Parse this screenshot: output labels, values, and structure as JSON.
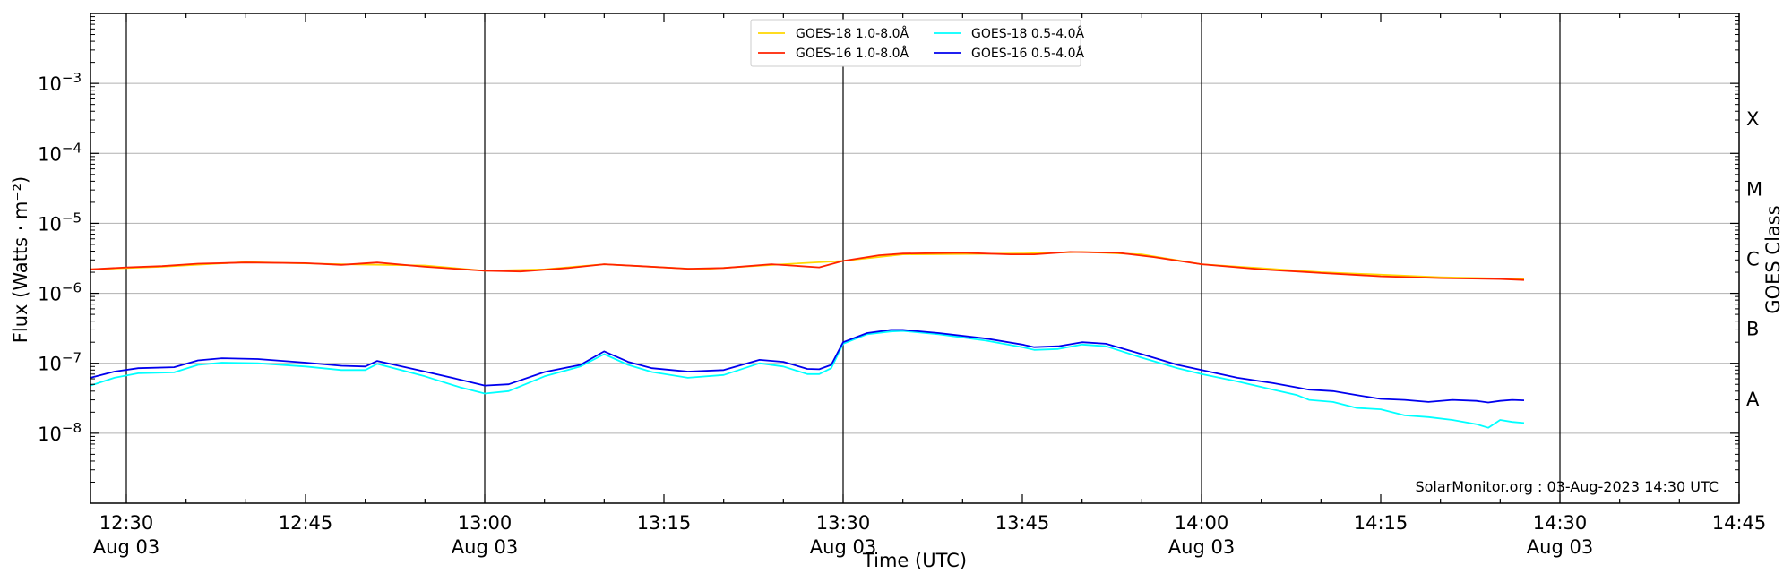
{
  "chart_data": {
    "type": "line",
    "xlabel": "Time (UTC)",
    "ylabel": "Flux (Watts · m⁻²)",
    "y2label": "GOES Class",
    "y_scale": "log",
    "ylim": [
      1e-09,
      0.01
    ],
    "xlim": [
      "12:27",
      "14:45"
    ],
    "grid": "horizontal at decades",
    "x_ticks": [
      {
        "time": "12:30",
        "label": "12:30",
        "sublabel": "Aug 03"
      },
      {
        "time": "12:45",
        "label": "12:45",
        "sublabel": ""
      },
      {
        "time": "13:00",
        "label": "13:00",
        "sublabel": "Aug 03"
      },
      {
        "time": "13:15",
        "label": "13:15",
        "sublabel": ""
      },
      {
        "time": "13:30",
        "label": "13:30",
        "sublabel": "Aug 03"
      },
      {
        "time": "13:45",
        "label": "13:45",
        "sublabel": ""
      },
      {
        "time": "14:00",
        "label": "14:00",
        "sublabel": "Aug 03"
      },
      {
        "time": "14:15",
        "label": "14:15",
        "sublabel": ""
      },
      {
        "time": "14:30",
        "label": "14:30",
        "sublabel": "Aug 03"
      },
      {
        "time": "14:45",
        "label": "14:45",
        "sublabel": ""
      }
    ],
    "vertical_lines": [
      "12:30",
      "13:00",
      "13:30",
      "14:00",
      "14:30"
    ],
    "y_ticks": [
      {
        "value": 1e-08,
        "base": "10",
        "exp": "−8"
      },
      {
        "value": 1e-07,
        "base": "10",
        "exp": "−7"
      },
      {
        "value": 1e-06,
        "base": "10",
        "exp": "−6"
      },
      {
        "value": 1e-05,
        "base": "10",
        "exp": "−5"
      },
      {
        "value": 0.0001,
        "base": "10",
        "exp": "−4"
      },
      {
        "value": 0.001,
        "base": "10",
        "exp": "−3"
      }
    ],
    "goes_classes": [
      {
        "label": "A",
        "value": 3.16e-08
      },
      {
        "label": "B",
        "value": 3.16e-07
      },
      {
        "label": "C",
        "value": 3.16e-06
      },
      {
        "label": "M",
        "value": 3.16e-05
      },
      {
        "label": "X",
        "value": 0.000316
      }
    ],
    "legend": {
      "placement": "top-center",
      "entries": [
        {
          "name": "GOES-18 1.0-8.0Å",
          "color": "#ffd700"
        },
        {
          "name": "GOES-16 1.0-8.0Å",
          "color": "#ff2200"
        },
        {
          "name": "GOES-18 0.5-4.0Å",
          "color": "#00ffff"
        },
        {
          "name": "GOES-16 0.5-4.0Å",
          "color": "#0000ee"
        }
      ]
    },
    "series": [
      {
        "name": "GOES-18 1.0-8.0Å",
        "color": "#ffd700",
        "x": [
          "12:27",
          "12:33",
          "12:40",
          "12:48",
          "12:55",
          "13:00",
          "13:05",
          "13:10",
          "13:18",
          "13:25",
          "13:30",
          "13:35",
          "13:45",
          "13:50",
          "13:55",
          "14:00",
          "14:10",
          "14:20",
          "14:27"
        ],
        "y": [
          2.2e-06,
          2.4e-06,
          2.8e-06,
          2.6e-06,
          2.5e-06,
          2.1e-06,
          2.2e-06,
          2.6e-06,
          2.2e-06,
          2.6e-06,
          2.9e-06,
          3.6e-06,
          3.7e-06,
          3.9e-06,
          3.6e-06,
          2.6e-06,
          2e-06,
          1.7e-06,
          1.6e-06
        ]
      },
      {
        "name": "GOES-16 1.0-8.0Å",
        "color": "#ff2200",
        "x": [
          "12:27",
          "12:30",
          "12:33",
          "12:36",
          "12:40",
          "12:45",
          "12:48",
          "12:51",
          "12:55",
          "13:00",
          "13:03",
          "13:07",
          "13:10",
          "13:13",
          "13:17",
          "13:20",
          "13:24",
          "13:28",
          "13:30",
          "13:33",
          "13:35",
          "13:40",
          "13:44",
          "13:46",
          "13:49",
          "13:53",
          "13:56",
          "14:00",
          "14:05",
          "14:10",
          "14:15",
          "14:20",
          "14:25",
          "14:27"
        ],
        "y": [
          2.2e-06,
          2.35e-06,
          2.45e-06,
          2.65e-06,
          2.75e-06,
          2.7e-06,
          2.55e-06,
          2.75e-06,
          2.4e-06,
          2.1e-06,
          2.05e-06,
          2.3e-06,
          2.6e-06,
          2.45e-06,
          2.25e-06,
          2.3e-06,
          2.6e-06,
          2.35e-06,
          2.9e-06,
          3.5e-06,
          3.7e-06,
          3.8e-06,
          3.6e-06,
          3.6e-06,
          3.9e-06,
          3.8e-06,
          3.3e-06,
          2.6e-06,
          2.2e-06,
          1.95e-06,
          1.75e-06,
          1.65e-06,
          1.6e-06,
          1.55e-06
        ]
      },
      {
        "name": "GOES-18 0.5-4.0Å",
        "color": "#00ffff",
        "x": [
          "12:27",
          "12:29",
          "12:31",
          "12:34",
          "12:36",
          "12:38",
          "12:41",
          "12:45",
          "12:48",
          "12:50",
          "12:51",
          "12:55",
          "12:58",
          "13:00",
          "13:02",
          "13:05",
          "13:08",
          "13:10",
          "13:12",
          "13:14",
          "13:17",
          "13:20",
          "13:23",
          "13:25",
          "13:27",
          "13:28",
          "13:29",
          "13:30",
          "13:32",
          "13:34",
          "13:35",
          "13:38",
          "13:42",
          "13:45",
          "13:46",
          "13:48",
          "13:50",
          "13:52",
          "13:55",
          "13:58",
          "14:00",
          "14:03",
          "14:06",
          "14:08",
          "14:09",
          "14:11",
          "14:13",
          "14:15",
          "14:17",
          "14:19",
          "14:21",
          "14:23",
          "14:24",
          "14:25",
          "14:26",
          "14:27"
        ],
        "y": [
          4.8e-08,
          6.2e-08,
          7.2e-08,
          7.4e-08,
          9.5e-08,
          1.02e-07,
          1e-07,
          9e-08,
          8e-08,
          8e-08,
          9.8e-08,
          6.5e-08,
          4.5e-08,
          3.7e-08,
          4e-08,
          6.5e-08,
          9e-08,
          1.35e-07,
          9.5e-08,
          7.5e-08,
          6.2e-08,
          6.8e-08,
          1e-07,
          9e-08,
          7e-08,
          7e-08,
          8.5e-08,
          1.9e-07,
          2.6e-07,
          2.85e-07,
          2.9e-07,
          2.6e-07,
          2.1e-07,
          1.7e-07,
          1.55e-07,
          1.6e-07,
          1.85e-07,
          1.75e-07,
          1.2e-07,
          8.5e-08,
          7e-08,
          5.5e-08,
          4.2e-08,
          3.5e-08,
          3e-08,
          2.8e-08,
          2.3e-08,
          2.2e-08,
          1.8e-08,
          1.7e-08,
          1.55e-08,
          1.35e-08,
          1.2e-08,
          1.55e-08,
          1.45e-08,
          1.4e-08
        ]
      },
      {
        "name": "GOES-16 0.5-4.0Å",
        "color": "#0000ee",
        "x": [
          "12:27",
          "12:29",
          "12:31",
          "12:34",
          "12:36",
          "12:38",
          "12:41",
          "12:45",
          "12:48",
          "12:50",
          "12:51",
          "12:55",
          "12:58",
          "13:00",
          "13:02",
          "13:05",
          "13:08",
          "13:10",
          "13:12",
          "13:14",
          "13:17",
          "13:20",
          "13:23",
          "13:25",
          "13:27",
          "13:28",
          "13:29",
          "13:30",
          "13:32",
          "13:34",
          "13:35",
          "13:38",
          "13:42",
          "13:45",
          "13:46",
          "13:48",
          "13:50",
          "13:52",
          "13:55",
          "13:58",
          "14:00",
          "14:03",
          "14:06",
          "14:08",
          "14:09",
          "14:11",
          "14:13",
          "14:15",
          "14:17",
          "14:19",
          "14:21",
          "14:23",
          "14:24",
          "14:25",
          "14:26",
          "14:27"
        ],
        "y": [
          6.2e-08,
          7.6e-08,
          8.5e-08,
          8.8e-08,
          1.1e-07,
          1.18e-07,
          1.15e-07,
          1.02e-07,
          9.2e-08,
          9e-08,
          1.08e-07,
          7.6e-08,
          5.8e-08,
          4.8e-08,
          5e-08,
          7.5e-08,
          9.5e-08,
          1.48e-07,
          1.05e-07,
          8.5e-08,
          7.6e-08,
          8e-08,
          1.12e-07,
          1.05e-07,
          8.3e-08,
          8.2e-08,
          9.5e-08,
          2e-07,
          2.7e-07,
          3e-07,
          3e-07,
          2.7e-07,
          2.25e-07,
          1.85e-07,
          1.7e-07,
          1.75e-07,
          2e-07,
          1.9e-07,
          1.35e-07,
          9.5e-08,
          8e-08,
          6.2e-08,
          5.2e-08,
          4.5e-08,
          4.2e-08,
          4e-08,
          3.5e-08,
          3.1e-08,
          3e-08,
          2.8e-08,
          3e-08,
          2.9e-08,
          2.75e-08,
          2.9e-08,
          3e-08,
          2.95e-08
        ]
      }
    ]
  },
  "watermark": "SolarMonitor.org : 03-Aug-2023 14:30 UTC"
}
